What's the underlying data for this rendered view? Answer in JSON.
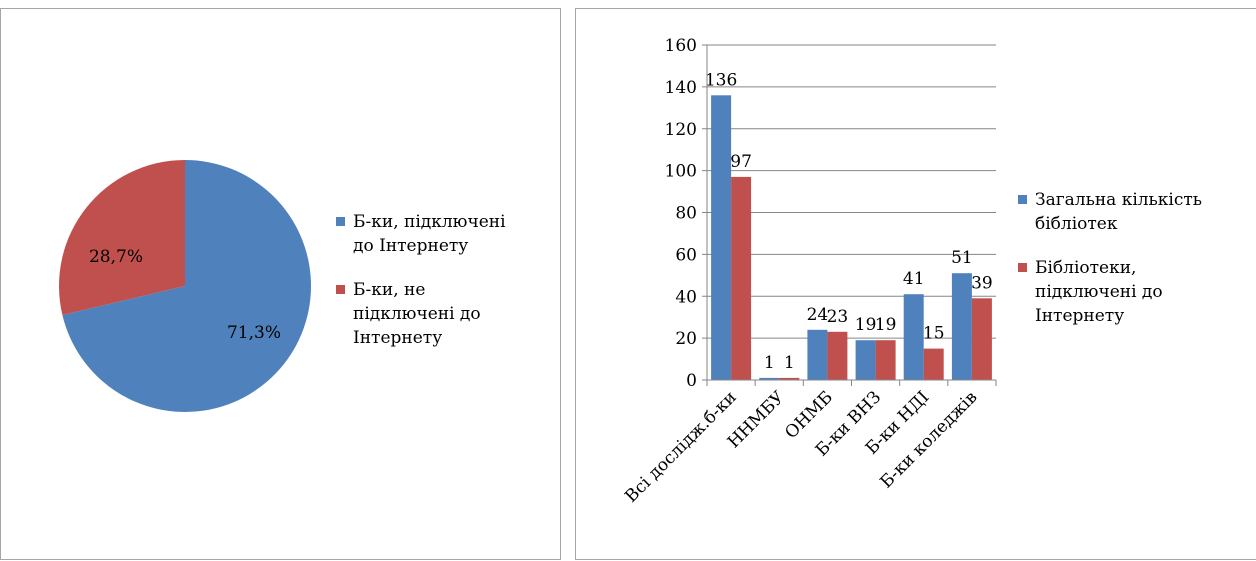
{
  "chart_data": [
    {
      "type": "pie",
      "title": "",
      "slices": [
        {
          "label": "Б-ки, підключені до Інтернету",
          "legend_lines": [
            "Б-ки, підключені",
            "до Інтернету"
          ],
          "value": 71.3,
          "value_label": "71,3%",
          "color": "#4f81bd"
        },
        {
          "label": "Б-ки, не підключені до Інтернету",
          "legend_lines": [
            "Б-ки, не",
            "підключені до",
            "Інтернету"
          ],
          "value": 28.7,
          "value_label": "28,7%",
          "color": "#c0504d"
        }
      ],
      "legend_position": "right"
    },
    {
      "type": "bar",
      "title": "",
      "xlabel": "",
      "ylabel": "",
      "categories": [
        "Всі дослідж.б-ки",
        "ННМБУ",
        "ОНМБ",
        "Б-ки ВНЗ",
        "Б-ки НДІ",
        "Б-ки коледжів"
      ],
      "series": [
        {
          "name": "Загальна кількість бібліотек",
          "legend_lines": [
            "Загальна кількість",
            "бібліотек"
          ],
          "values": [
            136,
            1,
            24,
            19,
            41,
            51
          ],
          "color": "#4f81bd"
        },
        {
          "name": "Бібліотеки, підключені до Інтернету",
          "legend_lines": [
            "Бібліотеки,",
            "підключені до",
            "Інтернету"
          ],
          "values": [
            97,
            1,
            23,
            19,
            15,
            39
          ],
          "color": "#c0504d"
        }
      ],
      "ylim": [
        0,
        160
      ],
      "yticks": [
        0,
        20,
        40,
        60,
        80,
        100,
        120,
        140,
        160
      ],
      "grid": true,
      "legend_position": "right"
    }
  ]
}
